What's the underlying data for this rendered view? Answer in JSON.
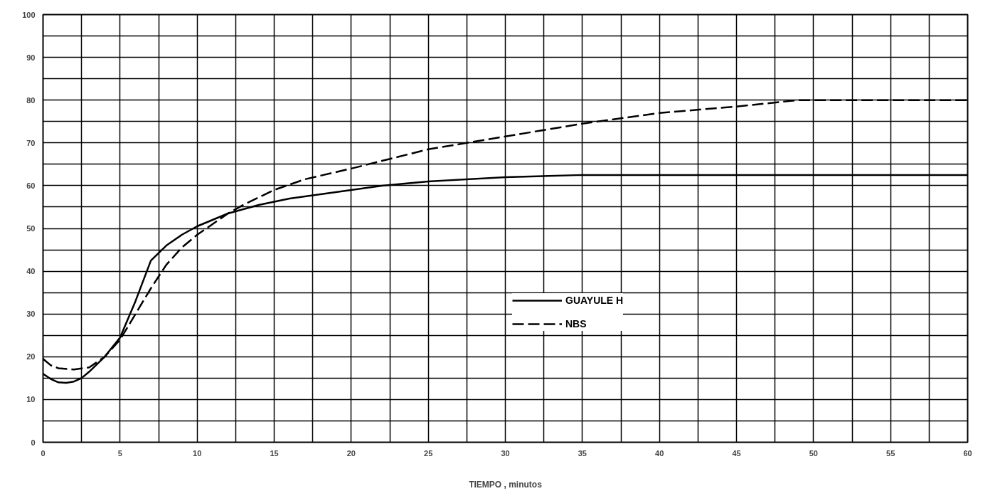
{
  "chart_data": {
    "type": "line",
    "xlabel": "TIEMPO , minutos",
    "xlim": [
      0,
      60
    ],
    "ylim": [
      0,
      100
    ],
    "xticks": [
      0,
      {
        "value": 2.5,
        "label": null
      },
      5,
      {
        "value": 7.5,
        "label": null
      },
      10,
      {
        "value": 12.5,
        "label": null
      },
      15,
      {
        "value": 17.5,
        "label": null
      },
      20,
      {
        "value": 22.5,
        "label": null
      },
      25,
      {
        "value": 27.5,
        "label": null
      },
      30,
      {
        "value": 32.5,
        "label": null
      },
      35,
      {
        "value": 37.5,
        "label": null
      },
      40,
      {
        "value": 42.5,
        "label": null
      },
      45,
      {
        "value": 47.5,
        "label": null
      },
      50,
      {
        "value": 52.5,
        "label": null
      },
      55,
      {
        "value": 57.5,
        "label": null
      },
      60
    ],
    "yticks": [
      0,
      {
        "value": 5,
        "label": null
      },
      10,
      {
        "value": 15,
        "label": null
      },
      20,
      {
        "value": 25,
        "label": null
      },
      30,
      {
        "value": 35,
        "label": null
      },
      40,
      {
        "value": 45,
        "label": null
      },
      50,
      {
        "value": 55,
        "label": null
      },
      60,
      {
        "value": 65,
        "label": null
      },
      70,
      {
        "value": 75,
        "label": null
      },
      80,
      {
        "value": 85,
        "label": null
      },
      90,
      {
        "value": 95,
        "label": null
      },
      100
    ],
    "grid": true,
    "legend": "right",
    "marker": "none",
    "series": [
      {
        "name": "GUAYULE H",
        "color": "#000000",
        "line_style": "solid",
        "x": [
          0,
          0.5,
          1,
          1.5,
          2,
          2.5,
          3,
          4,
          5,
          6,
          7,
          8,
          9,
          10,
          11,
          12,
          14,
          16,
          18,
          20,
          22,
          25,
          30,
          35,
          40,
          50,
          60
        ],
        "values": [
          16,
          14.8,
          14,
          13.9,
          14.2,
          15,
          16.5,
          20,
          24.5,
          33,
          42.5,
          46,
          48.5,
          50.5,
          52,
          53.5,
          55.5,
          57,
          58,
          59,
          60,
          61,
          62,
          62.5,
          62.5,
          62.5,
          62.5
        ]
      },
      {
        "name": "NBS",
        "color": "#000000",
        "line_style": "dashed",
        "x": [
          0,
          0.5,
          1,
          2,
          3,
          4,
          5,
          6,
          7,
          8,
          9,
          10,
          11,
          12,
          13,
          15,
          17,
          20,
          25,
          30,
          35,
          40,
          45,
          49,
          55,
          60
        ],
        "values": [
          19.5,
          18,
          17.3,
          17,
          17.5,
          20,
          24,
          30,
          36,
          41.5,
          45.5,
          48.5,
          51,
          53.5,
          55.5,
          59,
          61.5,
          64,
          68.5,
          71.5,
          74.5,
          77,
          78.5,
          80,
          80,
          80
        ]
      }
    ]
  }
}
